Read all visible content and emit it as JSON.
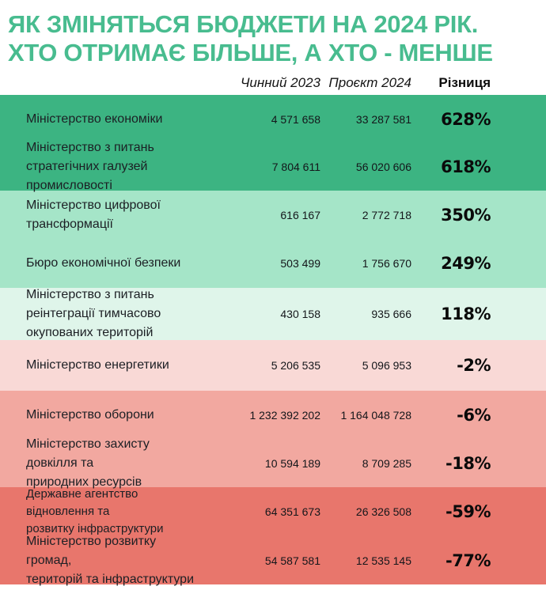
{
  "title": {
    "line1": "ЯК ЗМІНЯТЬСЯ БЮДЖЕТИ НА 2024 РІК.",
    "line2": "ХТО ОТРИМАЄ БІЛЬШЕ, А ХТО - МЕНШЕ"
  },
  "columns": {
    "col2023": "Чинний 2023",
    "col2024": "Проєкт 2024",
    "diff": "Різниця"
  },
  "rows": [
    {
      "name": "Міністерство економіки",
      "v2023": "4 571 658",
      "v2024": "33 287 581",
      "diff": "628%",
      "tone": "green-dark"
    },
    {
      "name": "Міністерство з питань\nстратегічних галузей\nпромисловості",
      "v2023": "7 804 611",
      "v2024": "56 020 606",
      "diff": "618%",
      "tone": "green-dark"
    },
    {
      "name": "Міністерство цифрової\nтрансформації",
      "v2023": "616 167",
      "v2024": "2 772 718",
      "diff": "350%",
      "tone": "green-light"
    },
    {
      "name": "Бюро економічної безпеки",
      "v2023": "503 499",
      "v2024": "1 756 670",
      "diff": "249%",
      "tone": "green-light"
    },
    {
      "name": "Міністерство з питань\nреінтеграції тимчасово\nокупованих територій",
      "v2023": "430 158",
      "v2024": "935 666",
      "diff": "118%",
      "tone": "mint"
    },
    {
      "name": "Міністерство енергетики",
      "v2023": "5 206 535",
      "v2024": "5 096 953",
      "diff": "-2%",
      "tone": "pink-light"
    },
    {
      "name": "Міністерство оборони",
      "v2023": "1 232 392 202",
      "v2024": "1 164 048 728",
      "diff": "-6%",
      "tone": "salmon"
    },
    {
      "name": "Міністерство захисту довкілля та\nприродних ресурсів",
      "v2023": "10 594 189",
      "v2024": "8 709 285",
      "diff": "-18%",
      "tone": "salmon"
    },
    {
      "name": "Державне агентство відновлення та\nрозвитку інфраструктури",
      "v2023": "64 351 673",
      "v2024": "26 326 508",
      "diff": "-59%",
      "tone": "coral"
    },
    {
      "name": "Міністерство розвитку громад,\nтериторій та інфраструктури",
      "v2023": "54 587 581",
      "v2024": "12 535 145",
      "diff": "-77%",
      "tone": "coral"
    }
  ],
  "colors": {
    "title_green": "#48BC8F",
    "band_green_dark": "#3CB482",
    "band_green_light": "#A5E5C8",
    "band_mint": "#DFF5EA",
    "band_pink_light": "#F9D9D6",
    "band_salmon": "#F2A8A0",
    "band_coral": "#E8766C",
    "text_dark": "#1c1f24"
  },
  "chart_data": {
    "type": "table",
    "title": "ЯК ЗМІНЯТЬСЯ БЮДЖЕТИ НА 2024 РІК. ХТО ОТРИМАЄ БІЛЬШЕ, А ХТО - МЕНШЕ",
    "columns": [
      "Чинний 2023",
      "Проєкт 2024",
      "Різниця"
    ],
    "categories": [
      "Міністерство економіки",
      "Міністерство з питань стратегічних галузей промисловості",
      "Міністерство цифрової трансформації",
      "Бюро економічної безпеки",
      "Міністерство з питань реінтеграції тимчасово окупованих територій",
      "Міністерство енергетики",
      "Міністерство оборони",
      "Міністерство захисту довкілля та природних ресурсів",
      "Державне агентство відновлення та розвитку інфраструктури",
      "Міністерство розвитку громад, територій та інфраструктури"
    ],
    "series": [
      {
        "name": "Чинний 2023",
        "values": [
          4571658,
          7804611,
          616167,
          503499,
          430158,
          5206535,
          1232392202,
          10594189,
          64351673,
          54587581
        ]
      },
      {
        "name": "Проєкт 2024",
        "values": [
          33287581,
          56020606,
          2772718,
          1756670,
          935666,
          5096953,
          1164048728,
          8709285,
          26326508,
          12535145
        ]
      },
      {
        "name": "Різниця %",
        "values": [
          628,
          618,
          350,
          249,
          118,
          -2,
          -6,
          -18,
          -59,
          -77
        ]
      }
    ],
    "layout_hints": {
      "row_color_meaning": "green shades = budget increase, red shades = budget decrease",
      "value_alignment": "right"
    }
  }
}
